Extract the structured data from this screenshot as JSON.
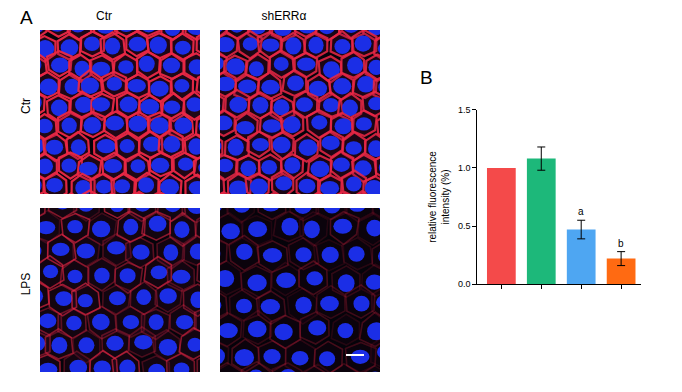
{
  "figure": {
    "panels": [
      {
        "label": "A",
        "columns": [
          "Ctr",
          "shERRα"
        ],
        "rows": [
          "Ctr",
          "LPS"
        ]
      },
      {
        "label": "B"
      }
    ]
  },
  "chart_data": {
    "type": "bar",
    "categories": [
      null,
      null,
      null,
      null
    ],
    "values": [
      1.0,
      1.08,
      0.47,
      0.22
    ],
    "errors": [
      null,
      0.1,
      0.08,
      0.06
    ],
    "colors": [
      "#f44a4a",
      "#1db87a",
      "#4ea6f2",
      "#ff6a12"
    ],
    "ylabel": "relative fluorescence\nintensity (%)",
    "ylim": [
      0,
      1.5
    ],
    "yticks": [
      {
        "value": 0,
        "label": "0.0"
      },
      {
        "value": 0.5,
        "label": "0.5"
      },
      {
        "value": 1.0,
        "label": "1.0"
      },
      {
        "value": 1.5,
        "label": "1.5"
      }
    ],
    "tick_labels": "y",
    "grid": false,
    "annotations": [
      {
        "text": "a",
        "index": 2
      },
      {
        "text": "b",
        "index": 3
      }
    ]
  }
}
